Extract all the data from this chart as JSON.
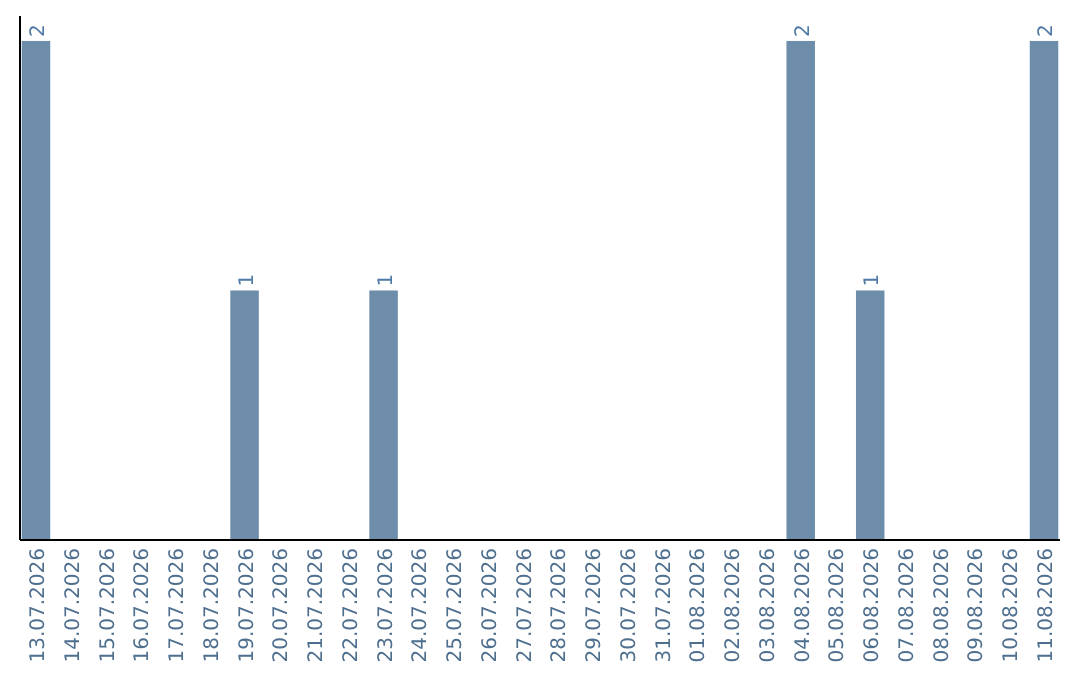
{
  "chart_data": {
    "type": "bar",
    "categories": [
      "13.07.2026",
      "14.07.2026",
      "15.07.2026",
      "16.07.2026",
      "17.07.2026",
      "18.07.2026",
      "19.07.2026",
      "20.07.2026",
      "21.07.2026",
      "22.07.2026",
      "23.07.2026",
      "24.07.2026",
      "25.07.2026",
      "26.07.2026",
      "27.07.2026",
      "28.07.2026",
      "29.07.2026",
      "30.07.2026",
      "31.07.2026",
      "01.08.2026",
      "02.08.2026",
      "03.08.2026",
      "04.08.2026",
      "05.08.2026",
      "06.08.2026",
      "07.08.2026",
      "08.08.2026",
      "09.08.2026",
      "10.08.2026",
      "11.08.2026"
    ],
    "values": [
      2,
      0,
      0,
      0,
      0,
      0,
      1,
      0,
      0,
      0,
      1,
      0,
      0,
      0,
      0,
      0,
      0,
      0,
      0,
      0,
      0,
      0,
      2,
      0,
      1,
      0,
      0,
      0,
      0,
      2
    ],
    "value_labels": [
      "2",
      null,
      null,
      null,
      null,
      null,
      "1",
      null,
      null,
      null,
      "1",
      null,
      null,
      null,
      null,
      null,
      null,
      null,
      null,
      null,
      null,
      null,
      "2",
      null,
      "1",
      null,
      null,
      null,
      null,
      "2"
    ],
    "color": "#6d8dab",
    "ylim": [
      0,
      2.1
    ],
    "tick_labels": "x"
  }
}
